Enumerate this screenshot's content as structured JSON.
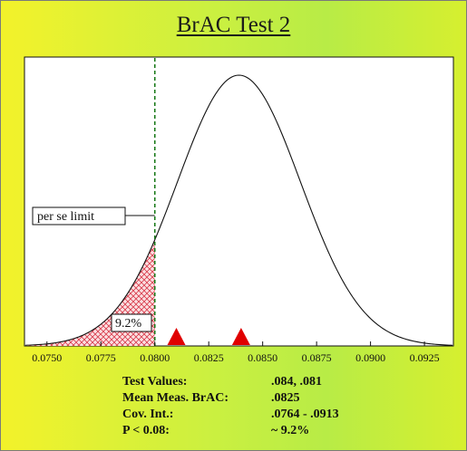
{
  "title": "BrAC Test 2",
  "chart_data": {
    "type": "area",
    "title": "BrAC Test 2",
    "xlabel": "",
    "ylabel": "",
    "xlim": [
      0.074,
      0.0938
    ],
    "xticks": [
      "0.0750",
      "0.0775",
      "0.0800",
      "0.0825",
      "0.0850",
      "0.0875",
      "0.0900",
      "0.0925"
    ],
    "distribution": {
      "kind": "normal",
      "mean": 0.0839,
      "sd": 0.00285
    },
    "limit": {
      "x": 0.08,
      "label": "per se limit",
      "style": "dashed",
      "color": "#1a7a1a"
    },
    "shaded_region": {
      "from": 0.074,
      "to": 0.08,
      "label": "9.2%",
      "color": "#e05060"
    },
    "markers": [
      {
        "x": 0.081,
        "color": "#e00000"
      },
      {
        "x": 0.084,
        "color": "#e00000"
      }
    ],
    "grid": false,
    "legend": "none"
  },
  "info": {
    "rows": [
      {
        "label": "Test Values:",
        "value": ".084, .081"
      },
      {
        "label": "Mean Meas. BrAC:",
        "value": ".0825"
      },
      {
        "label": "Cov. Int.:",
        "value": ".0764 - .0913"
      },
      {
        "label": "P < 0.08:",
        "value": "~ 9.2%"
      }
    ]
  }
}
